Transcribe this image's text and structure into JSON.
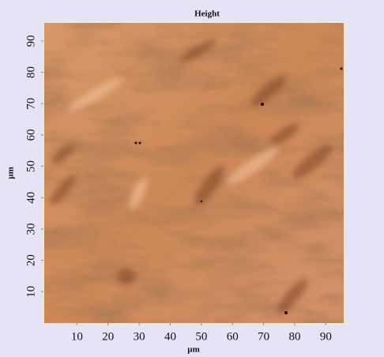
{
  "chart_data": {
    "type": "image",
    "title": "Height",
    "xlabel": "µm",
    "ylabel": "µm",
    "xlim": [
      0,
      96
    ],
    "ylim": [
      0,
      96
    ],
    "xticks": [
      10,
      20,
      30,
      40,
      50,
      60,
      70,
      80,
      90
    ],
    "yticks": [
      10,
      20,
      30,
      40,
      50,
      60,
      70,
      80,
      90
    ]
  }
}
